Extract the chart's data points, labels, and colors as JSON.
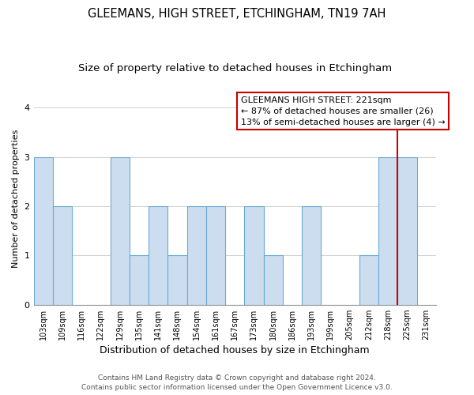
{
  "title": "GLEEMANS, HIGH STREET, ETCHINGHAM, TN19 7AH",
  "subtitle": "Size of property relative to detached houses in Etchingham",
  "xlabel": "Distribution of detached houses by size in Etchingham",
  "ylabel": "Number of detached properties",
  "categories": [
    "103sqm",
    "109sqm",
    "116sqm",
    "122sqm",
    "129sqm",
    "135sqm",
    "141sqm",
    "148sqm",
    "154sqm",
    "161sqm",
    "167sqm",
    "173sqm",
    "180sqm",
    "186sqm",
    "193sqm",
    "199sqm",
    "205sqm",
    "212sqm",
    "218sqm",
    "225sqm",
    "231sqm"
  ],
  "values": [
    3,
    2,
    0,
    0,
    3,
    1,
    2,
    1,
    2,
    2,
    0,
    2,
    1,
    0,
    2,
    0,
    0,
    1,
    3,
    3,
    0
  ],
  "bar_color": "#ccddf0",
  "bar_edge_color": "#6aaad4",
  "reference_line_x": 18,
  "reference_line_color": "#cc0000",
  "annotation_title": "GLEEMANS HIGH STREET: 221sqm",
  "annotation_line1": "← 87% of detached houses are smaller (26)",
  "annotation_line2": "13% of semi-detached houses are larger (4) →",
  "annotation_box_color": "#cc0000",
  "ylim": [
    0,
    4.3
  ],
  "yticks": [
    0,
    1,
    2,
    3,
    4
  ],
  "footer1": "Contains HM Land Registry data © Crown copyright and database right 2024.",
  "footer2": "Contains public sector information licensed under the Open Government Licence v3.0.",
  "title_fontsize": 10.5,
  "subtitle_fontsize": 9.5,
  "ylabel_fontsize": 8,
  "xlabel_fontsize": 9,
  "tick_fontsize": 7,
  "annot_fontsize": 8,
  "footer_fontsize": 6.5
}
